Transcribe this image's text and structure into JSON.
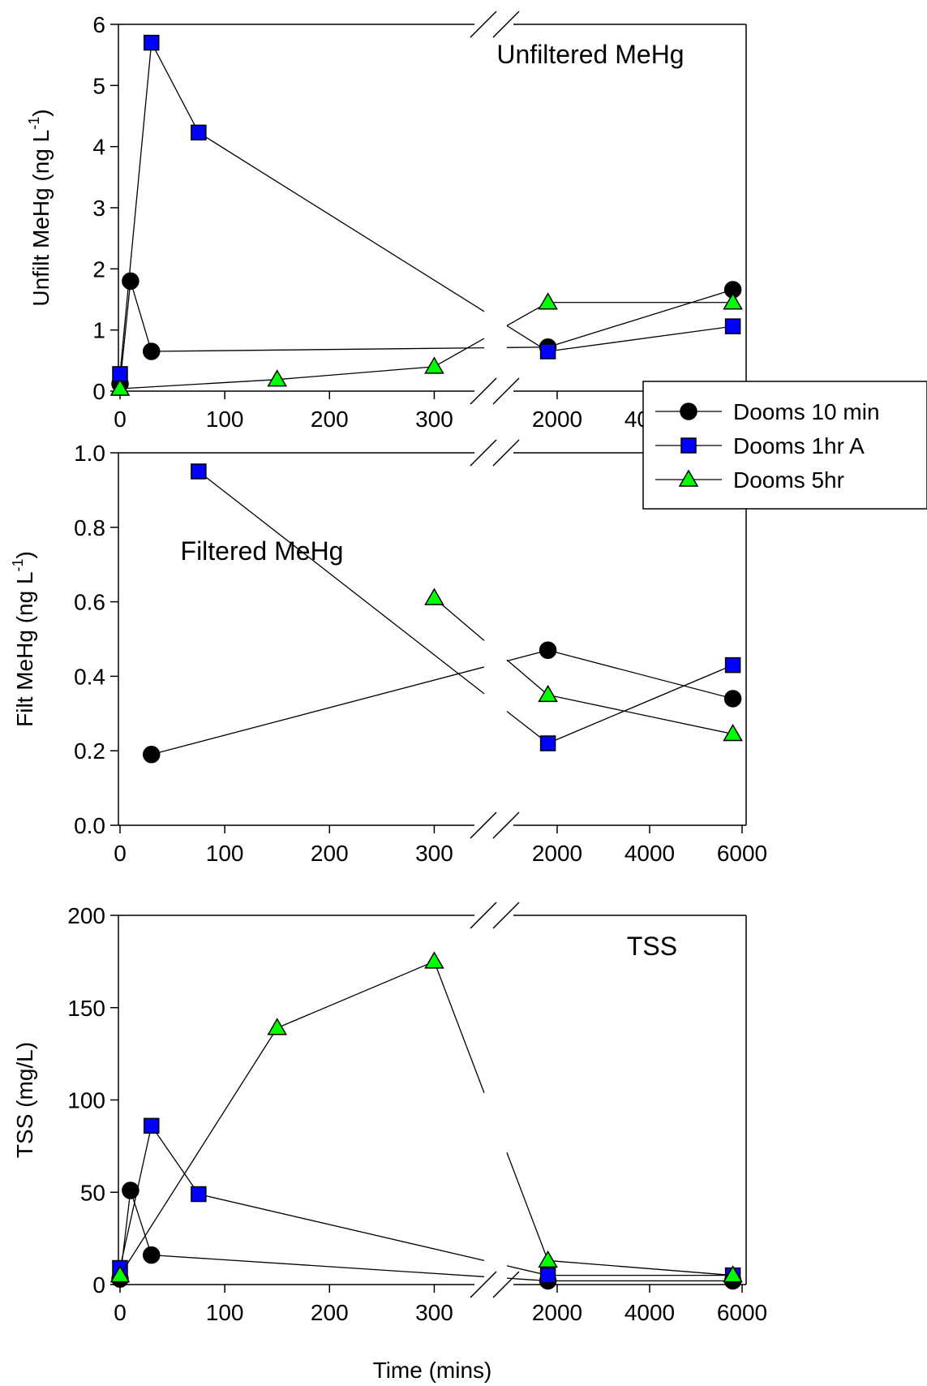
{
  "chart_data": [
    {
      "type": "line",
      "title": "Unfiltered MeHg",
      "ylabel": "Unfilt MeHg (ng L",
      "ylabel_sup": "-1",
      "ylabel_close": ")",
      "xlabel": "",
      "ylim": [
        0,
        6
      ],
      "yticks": [
        "0",
        "1",
        "2",
        "3",
        "4",
        "5",
        "6"
      ],
      "xlim_left": [
        0,
        350
      ],
      "xticks_left": [
        "0",
        "100",
        "200",
        "300"
      ],
      "xticks_right": [
        "2000",
        "4000",
        "6000"
      ],
      "axis_break": true,
      "legend": {
        "position": "right",
        "entries": [
          "Dooms 10 min",
          "Dooms 1hr A",
          "Dooms 5hr"
        ]
      },
      "series": [
        {
          "name": "Dooms 10 min",
          "color": "#000000",
          "marker": "circle",
          "x": [
            0,
            10,
            30,
            1800,
            5800
          ],
          "y": [
            0.12,
            1.8,
            0.65,
            0.72,
            1.66
          ]
        },
        {
          "name": "Dooms 1hr A",
          "color": "#0000ff",
          "marker": "square",
          "x": [
            0,
            30,
            75,
            1800,
            5800
          ],
          "y": [
            0.28,
            5.7,
            4.23,
            0.65,
            1.06
          ]
        },
        {
          "name": "Dooms 5hr",
          "color": "#00ff00",
          "marker": "triangle",
          "x": [
            0,
            150,
            300,
            1800,
            5800
          ],
          "y": [
            0.04,
            0.19,
            0.4,
            1.45,
            1.45
          ]
        }
      ]
    },
    {
      "type": "line",
      "title": "Filtered MeHg",
      "ylabel": "Filt MeHg (ng L",
      "ylabel_sup": "-1",
      "ylabel_close": ")",
      "xlabel": "",
      "ylim": [
        0,
        1
      ],
      "yticks": [
        "0.0",
        "0.2",
        "0.4",
        "0.6",
        "0.8",
        "1.0"
      ],
      "xlim_left": [
        0,
        350
      ],
      "xticks_left": [
        "0",
        "100",
        "200",
        "300"
      ],
      "xticks_right": [
        "2000",
        "4000",
        "6000"
      ],
      "axis_break": true,
      "series": [
        {
          "name": "Dooms 10 min",
          "color": "#000000",
          "marker": "circle",
          "x": [
            30,
            1800,
            5800
          ],
          "y": [
            0.19,
            0.47,
            0.34
          ]
        },
        {
          "name": "Dooms 1hr A",
          "color": "#0000ff",
          "marker": "square",
          "x": [
            75,
            1800,
            5800
          ],
          "y": [
            0.95,
            0.22,
            0.43
          ]
        },
        {
          "name": "Dooms 5hr",
          "color": "#00ff00",
          "marker": "triangle",
          "x": [
            300,
            1800,
            5800
          ],
          "y": [
            0.61,
            0.35,
            0.245
          ]
        }
      ]
    },
    {
      "type": "line",
      "title": "TSS",
      "ylabel": "TSS (mg/L)",
      "ylabel_sup": "",
      "ylabel_close": "",
      "xlabel": "Time (mins)",
      "ylim": [
        0,
        200
      ],
      "yticks": [
        "0",
        "50",
        "100",
        "150",
        "200"
      ],
      "xlim_left": [
        0,
        350
      ],
      "xticks_left": [
        "0",
        "100",
        "200",
        "300"
      ],
      "xticks_right": [
        "2000",
        "4000",
        "6000"
      ],
      "axis_break": true,
      "series": [
        {
          "name": "Dooms 10 min",
          "color": "#000000",
          "marker": "circle",
          "x": [
            0,
            10,
            30,
            1800,
            5800
          ],
          "y": [
            3,
            51,
            16,
            2,
            2
          ]
        },
        {
          "name": "Dooms 1hr A",
          "color": "#0000ff",
          "marker": "square",
          "x": [
            0,
            30,
            75,
            1800,
            5800
          ],
          "y": [
            9,
            86,
            49,
            5,
            5
          ]
        },
        {
          "name": "Dooms 5hr",
          "color": "#00ff00",
          "marker": "triangle",
          "x": [
            0,
            150,
            300,
            1800,
            5800
          ],
          "y": [
            5,
            139,
            175,
            13,
            5
          ]
        }
      ]
    }
  ]
}
